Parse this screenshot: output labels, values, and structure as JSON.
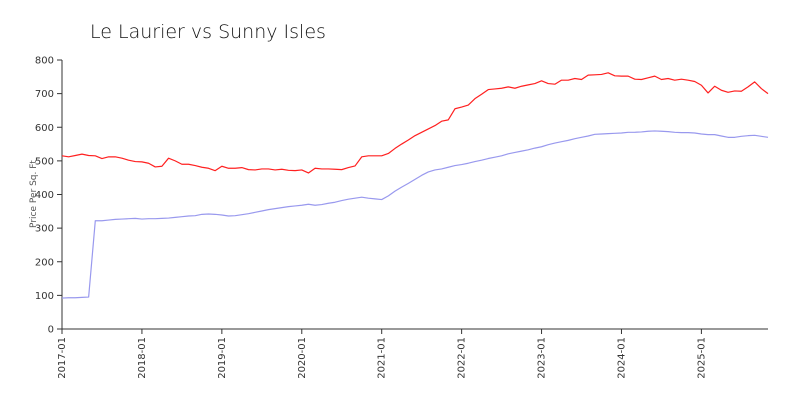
{
  "chart_data": {
    "type": "line",
    "title": "Le Laurier vs Sunny Isles",
    "ylabel": "Price Per Sq. Ft",
    "xlabel": "",
    "ylim": [
      0,
      800
    ],
    "yticks": [
      0,
      100,
      200,
      300,
      400,
      500,
      600,
      700,
      800
    ],
    "x_start": "2017-01",
    "x_end": "2025-11",
    "xticks": [
      "2017-01",
      "2018-01",
      "2019-01",
      "2020-01",
      "2021-01",
      "2022-01",
      "2023-01",
      "2024-01",
      "2025-01"
    ],
    "grid": false,
    "legend": "none",
    "series": [
      {
        "color": "#ff2020",
        "points": [
          [
            "2017-01",
            515
          ],
          [
            "2017-02",
            512
          ],
          [
            "2017-03",
            516
          ],
          [
            "2017-04",
            520
          ],
          [
            "2017-05",
            516
          ],
          [
            "2017-06",
            515
          ],
          [
            "2017-07",
            507
          ],
          [
            "2017-08",
            512
          ],
          [
            "2017-09",
            512
          ],
          [
            "2017-10",
            508
          ],
          [
            "2017-11",
            502
          ],
          [
            "2017-12",
            498
          ],
          [
            "2018-01",
            497
          ],
          [
            "2018-02",
            493
          ],
          [
            "2018-03",
            482
          ],
          [
            "2018-04",
            484
          ],
          [
            "2018-05",
            508
          ],
          [
            "2018-06",
            500
          ],
          [
            "2018-07",
            490
          ],
          [
            "2018-08",
            490
          ],
          [
            "2018-09",
            486
          ],
          [
            "2018-10",
            481
          ],
          [
            "2018-11",
            478
          ],
          [
            "2018-12",
            471
          ],
          [
            "2019-01",
            484
          ],
          [
            "2019-02",
            478
          ],
          [
            "2019-03",
            478
          ],
          [
            "2019-04",
            480
          ],
          [
            "2019-05",
            474
          ],
          [
            "2019-06",
            473
          ],
          [
            "2019-07",
            476
          ],
          [
            "2019-08",
            476
          ],
          [
            "2019-09",
            473
          ],
          [
            "2019-10",
            475
          ],
          [
            "2019-11",
            472
          ],
          [
            "2019-12",
            471
          ],
          [
            "2020-01",
            473
          ],
          [
            "2020-02",
            464
          ],
          [
            "2020-03",
            478
          ],
          [
            "2020-04",
            476
          ],
          [
            "2020-05",
            476
          ],
          [
            "2020-06",
            475
          ],
          [
            "2020-07",
            474
          ],
          [
            "2020-08",
            480
          ],
          [
            "2020-09",
            485
          ],
          [
            "2020-10",
            512
          ],
          [
            "2020-11",
            515
          ],
          [
            "2020-12",
            515
          ],
          [
            "2021-01",
            515
          ],
          [
            "2021-02",
            522
          ],
          [
            "2021-03",
            537
          ],
          [
            "2021-04",
            550
          ],
          [
            "2021-05",
            562
          ],
          [
            "2021-06",
            575
          ],
          [
            "2021-07",
            585
          ],
          [
            "2021-08",
            595
          ],
          [
            "2021-09",
            605
          ],
          [
            "2021-10",
            618
          ],
          [
            "2021-11",
            622
          ],
          [
            "2021-12",
            655
          ],
          [
            "2022-01",
            660
          ],
          [
            "2022-02",
            666
          ],
          [
            "2022-03",
            685
          ],
          [
            "2022-04",
            698
          ],
          [
            "2022-05",
            712
          ],
          [
            "2022-06",
            714
          ],
          [
            "2022-07",
            716
          ],
          [
            "2022-08",
            720
          ],
          [
            "2022-09",
            716
          ],
          [
            "2022-10",
            722
          ],
          [
            "2022-11",
            726
          ],
          [
            "2022-12",
            730
          ],
          [
            "2023-01",
            738
          ],
          [
            "2023-02",
            730
          ],
          [
            "2023-03",
            728
          ],
          [
            "2023-04",
            740
          ],
          [
            "2023-05",
            740
          ],
          [
            "2023-06",
            745
          ],
          [
            "2023-07",
            742
          ],
          [
            "2023-08",
            755
          ],
          [
            "2023-09",
            756
          ],
          [
            "2023-10",
            757
          ],
          [
            "2023-11",
            762
          ],
          [
            "2023-12",
            753
          ],
          [
            "2024-01",
            752
          ],
          [
            "2024-02",
            752
          ],
          [
            "2024-03",
            743
          ],
          [
            "2024-04",
            742
          ],
          [
            "2024-05",
            747
          ],
          [
            "2024-06",
            752
          ],
          [
            "2024-07",
            742
          ],
          [
            "2024-08",
            745
          ],
          [
            "2024-09",
            740
          ],
          [
            "2024-10",
            743
          ],
          [
            "2024-11",
            740
          ],
          [
            "2024-12",
            736
          ],
          [
            "2025-01",
            725
          ],
          [
            "2025-02",
            702
          ],
          [
            "2025-03",
            722
          ],
          [
            "2025-04",
            710
          ],
          [
            "2025-05",
            704
          ],
          [
            "2025-06",
            708
          ],
          [
            "2025-07",
            707
          ],
          [
            "2025-08",
            720
          ],
          [
            "2025-09",
            735
          ],
          [
            "2025-10",
            715
          ],
          [
            "2025-11",
            700
          ]
        ]
      },
      {
        "color": "#9999ee",
        "points": [
          [
            "2017-01",
            92
          ],
          [
            "2017-02",
            93
          ],
          [
            "2017-03",
            93
          ],
          [
            "2017-04",
            94
          ],
          [
            "2017-05",
            95
          ],
          [
            "2017-06",
            322
          ],
          [
            "2017-07",
            322
          ],
          [
            "2017-08",
            324
          ],
          [
            "2017-09",
            326
          ],
          [
            "2017-10",
            327
          ],
          [
            "2017-11",
            328
          ],
          [
            "2017-12",
            329
          ],
          [
            "2018-01",
            327
          ],
          [
            "2018-02",
            328
          ],
          [
            "2018-03",
            328
          ],
          [
            "2018-04",
            329
          ],
          [
            "2018-05",
            330
          ],
          [
            "2018-06",
            332
          ],
          [
            "2018-07",
            334
          ],
          [
            "2018-08",
            336
          ],
          [
            "2018-09",
            337
          ],
          [
            "2018-10",
            341
          ],
          [
            "2018-11",
            342
          ],
          [
            "2018-12",
            341
          ],
          [
            "2019-01",
            339
          ],
          [
            "2019-02",
            336
          ],
          [
            "2019-03",
            337
          ],
          [
            "2019-04",
            340
          ],
          [
            "2019-05",
            343
          ],
          [
            "2019-06",
            347
          ],
          [
            "2019-07",
            351
          ],
          [
            "2019-08",
            355
          ],
          [
            "2019-09",
            358
          ],
          [
            "2019-10",
            361
          ],
          [
            "2019-11",
            364
          ],
          [
            "2019-12",
            366
          ],
          [
            "2020-01",
            368
          ],
          [
            "2020-02",
            371
          ],
          [
            "2020-03",
            368
          ],
          [
            "2020-04",
            370
          ],
          [
            "2020-05",
            374
          ],
          [
            "2020-06",
            377
          ],
          [
            "2020-07",
            382
          ],
          [
            "2020-08",
            386
          ],
          [
            "2020-09",
            389
          ],
          [
            "2020-10",
            392
          ],
          [
            "2020-11",
            389
          ],
          [
            "2020-12",
            387
          ],
          [
            "2021-01",
            385
          ],
          [
            "2021-02",
            396
          ],
          [
            "2021-03",
            410
          ],
          [
            "2021-04",
            422
          ],
          [
            "2021-05",
            433
          ],
          [
            "2021-06",
            445
          ],
          [
            "2021-07",
            457
          ],
          [
            "2021-08",
            467
          ],
          [
            "2021-09",
            473
          ],
          [
            "2021-10",
            476
          ],
          [
            "2021-11",
            481
          ],
          [
            "2021-12",
            486
          ],
          [
            "2022-01",
            489
          ],
          [
            "2022-02",
            493
          ],
          [
            "2022-03",
            498
          ],
          [
            "2022-04",
            502
          ],
          [
            "2022-05",
            507
          ],
          [
            "2022-06",
            511
          ],
          [
            "2022-07",
            515
          ],
          [
            "2022-08",
            521
          ],
          [
            "2022-09",
            525
          ],
          [
            "2022-10",
            529
          ],
          [
            "2022-11",
            533
          ],
          [
            "2022-12",
            538
          ],
          [
            "2023-01",
            542
          ],
          [
            "2023-02",
            548
          ],
          [
            "2023-03",
            553
          ],
          [
            "2023-04",
            557
          ],
          [
            "2023-05",
            561
          ],
          [
            "2023-06",
            566
          ],
          [
            "2023-07",
            570
          ],
          [
            "2023-08",
            574
          ],
          [
            "2023-09",
            579
          ],
          [
            "2023-10",
            580
          ],
          [
            "2023-11",
            581
          ],
          [
            "2023-12",
            582
          ],
          [
            "2024-01",
            583
          ],
          [
            "2024-02",
            585
          ],
          [
            "2024-03",
            585
          ],
          [
            "2024-04",
            586
          ],
          [
            "2024-05",
            588
          ],
          [
            "2024-06",
            589
          ],
          [
            "2024-07",
            588
          ],
          [
            "2024-08",
            587
          ],
          [
            "2024-09",
            585
          ],
          [
            "2024-10",
            584
          ],
          [
            "2024-11",
            584
          ],
          [
            "2024-12",
            583
          ],
          [
            "2025-01",
            580
          ],
          [
            "2025-02",
            578
          ],
          [
            "2025-03",
            578
          ],
          [
            "2025-04",
            574
          ],
          [
            "2025-05",
            570
          ],
          [
            "2025-06",
            570
          ],
          [
            "2025-07",
            573
          ],
          [
            "2025-08",
            575
          ],
          [
            "2025-09",
            576
          ],
          [
            "2025-10",
            573
          ],
          [
            "2025-11",
            570
          ]
        ]
      }
    ]
  }
}
